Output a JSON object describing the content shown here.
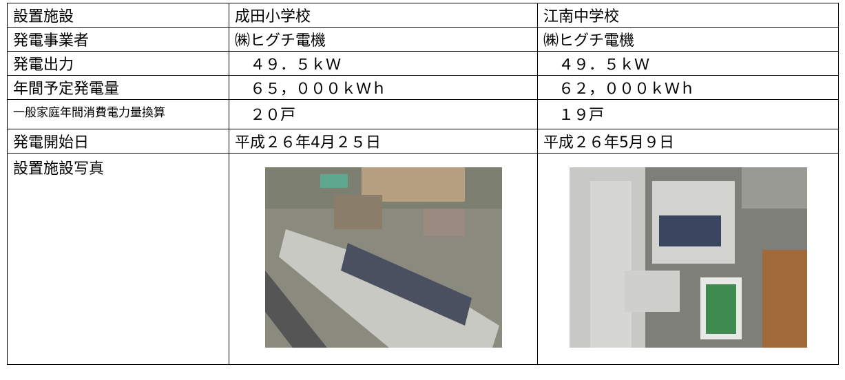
{
  "table": {
    "rows": [
      [
        "設置施設",
        "成田小学校",
        "江南中学校"
      ],
      [
        "発電事業者",
        "㈱ヒグチ電機",
        "㈱ヒグチ電機"
      ],
      [
        "発電出力",
        "　４９．５ｋＷ",
        "　４９．５ｋＷ"
      ],
      [
        "年間予定発電量",
        "　６５，０００ｋＷｈ",
        "　６２，０００ｋＷｈ"
      ],
      [
        "一般家庭年間消費電力量換算",
        "　２０戸",
        "　１９戸"
      ],
      [
        "発電開始日",
        "平成２６年4月２５日",
        "平成２６年5月９日"
      ],
      [
        "設置施設写真"
      ]
    ]
  }
}
